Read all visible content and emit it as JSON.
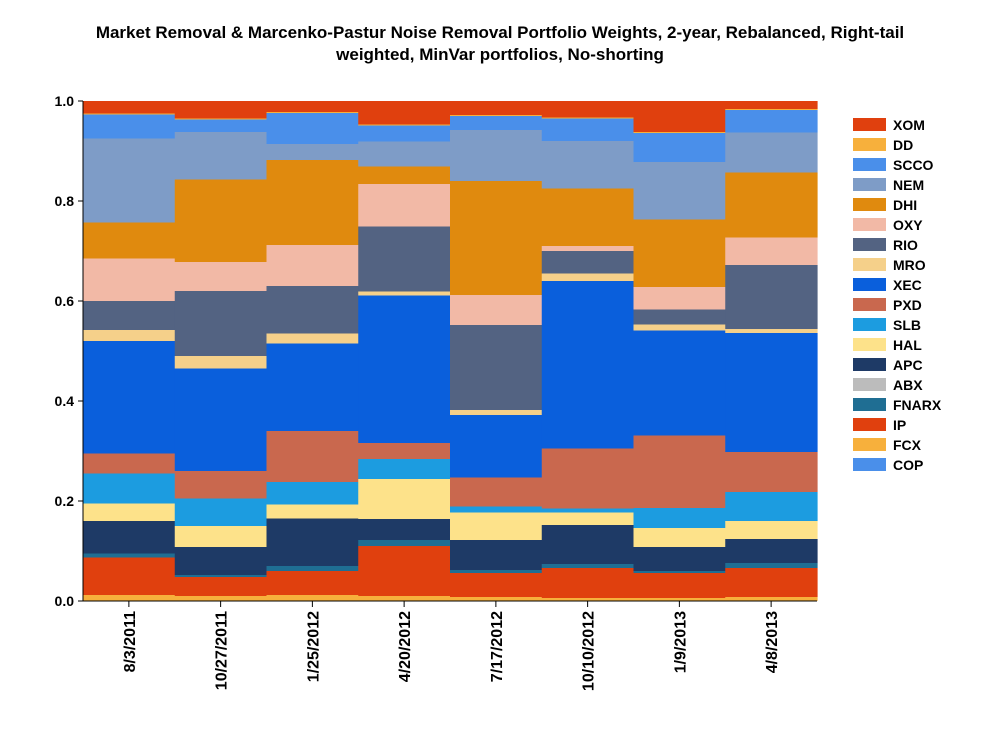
{
  "chart_data": {
    "type": "bar",
    "stacked": true,
    "title_line1": "Market Removal & Marcenko-Pastur Noise Removal Portfolio Weights, 2-year, Rebalanced, Right-tail",
    "title_line2": "weighted, MinVar portfolios, No-shorting",
    "xlabel": "",
    "ylabel": "",
    "ylim": [
      0,
      1.0
    ],
    "yticks": [
      "0.0",
      "0.2",
      "0.4",
      "0.6",
      "0.8",
      "1.0"
    ],
    "grid": false,
    "legend_position": "right",
    "categories": [
      "8/3/2011",
      "10/27/2011",
      "1/25/2012",
      "4/20/2012",
      "7/17/2012",
      "10/10/2012",
      "1/9/2013",
      "4/8/2013"
    ],
    "series": [
      {
        "name": "COP",
        "color": "#4A8FEA",
        "values": [
          0,
          0,
          0,
          0,
          0,
          0,
          0,
          0
        ]
      },
      {
        "name": "FCX",
        "color": "#F7B03C",
        "values": [
          0.012,
          0.01,
          0.012,
          0.01,
          0.008,
          0.006,
          0.006,
          0.008
        ]
      },
      {
        "name": "IP",
        "color": "#E0400E",
        "values": [
          0.075,
          0.038,
          0.048,
          0.1,
          0.048,
          0.06,
          0.05,
          0.058
        ]
      },
      {
        "name": "FNARX",
        "color": "#1F6E93",
        "values": [
          0.008,
          0.004,
          0.01,
          0.012,
          0.006,
          0.008,
          0.004,
          0.01
        ]
      },
      {
        "name": "ABX",
        "color": "#BCBCBC",
        "values": [
          0,
          0,
          0,
          0,
          0,
          0,
          0,
          0
        ]
      },
      {
        "name": "APC",
        "color": "#1E3A66",
        "values": [
          0.065,
          0.056,
          0.095,
          0.042,
          0.06,
          0.078,
          0.048,
          0.048
        ]
      },
      {
        "name": "HAL",
        "color": "#FDE28A",
        "values": [
          0.035,
          0.042,
          0.028,
          0.08,
          0.055,
          0.025,
          0.038,
          0.036
        ]
      },
      {
        "name": "SLB",
        "color": "#1C9CE0",
        "values": [
          0.06,
          0.055,
          0.045,
          0.04,
          0.012,
          0.008,
          0.04,
          0.058
        ]
      },
      {
        "name": "PXD",
        "color": "#C9684E",
        "values": [
          0.04,
          0.055,
          0.102,
          0.032,
          0.058,
          0.12,
          0.145,
          0.08
        ]
      },
      {
        "name": "XEC",
        "color": "#0A5FDC",
        "values": [
          0.225,
          0.205,
          0.175,
          0.295,
          0.125,
          0.335,
          0.21,
          0.238
        ]
      },
      {
        "name": "MRO",
        "color": "#F5D08A",
        "values": [
          0.022,
          0.025,
          0.02,
          0.008,
          0.01,
          0.015,
          0.012,
          0.008
        ]
      },
      {
        "name": "RIO",
        "color": "#536382",
        "values": [
          0.058,
          0.13,
          0.095,
          0.13,
          0.17,
          0.045,
          0.03,
          0.128
        ]
      },
      {
        "name": "OXY",
        "color": "#F2B9A6",
        "values": [
          0.085,
          0.058,
          0.082,
          0.085,
          0.06,
          0.01,
          0.045,
          0.055
        ]
      },
      {
        "name": "DHI",
        "color": "#E08A0E",
        "values": [
          0.072,
          0.165,
          0.17,
          0.035,
          0.228,
          0.115,
          0.135,
          0.13
        ]
      },
      {
        "name": "NEM",
        "color": "#7E9CC7",
        "values": [
          0.168,
          0.095,
          0.032,
          0.05,
          0.102,
          0.095,
          0.115,
          0.08
        ]
      },
      {
        "name": "SCCO",
        "color": "#4A8FEA",
        "values": [
          0.048,
          0.025,
          0.062,
          0.032,
          0.028,
          0.045,
          0.058,
          0.045
        ]
      },
      {
        "name": "DD",
        "color": "#F7B03C",
        "values": [
          0.002,
          0.002,
          0.002,
          0.002,
          0.002,
          0.002,
          0.002,
          0.002
        ]
      },
      {
        "name": "XOM",
        "color": "#E0400E",
        "values": [
          0.025,
          0.035,
          0.022,
          0.047,
          0.028,
          0.033,
          0.062,
          0.016
        ]
      }
    ],
    "legend_order": [
      "XOM",
      "DD",
      "SCCO",
      "NEM",
      "DHI",
      "OXY",
      "RIO",
      "MRO",
      "XEC",
      "PXD",
      "SLB",
      "HAL",
      "APC",
      "ABX",
      "FNARX",
      "IP",
      "FCX",
      "COP"
    ]
  }
}
